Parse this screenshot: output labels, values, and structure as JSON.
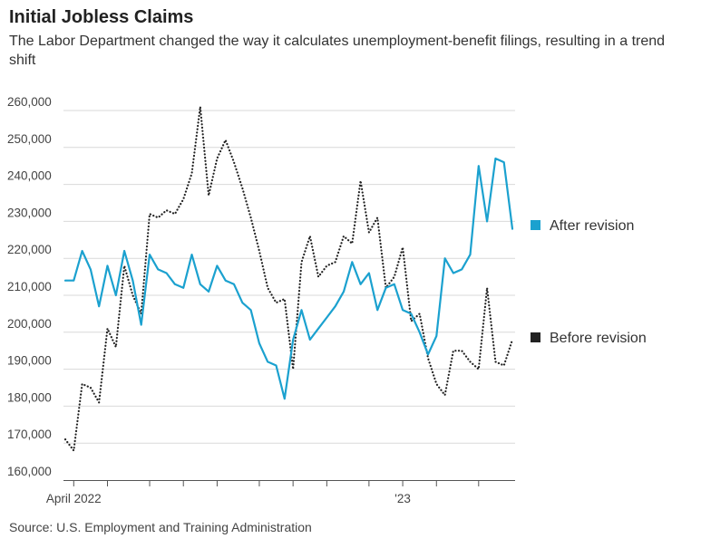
{
  "title": "Initial Jobless Claims",
  "subtitle": "The Labor Department changed the way it calculates unemployment-benefit filings, resulting in a trend shift",
  "source": "Source: U.S. Employment and Training Administration",
  "colors": {
    "after": "#1ba1cf",
    "before": "#222222",
    "grid": "#d9d9d9"
  },
  "chart_data": {
    "type": "line",
    "title": "Initial Jobless Claims",
    "ylim": [
      160000,
      260000
    ],
    "yticks": [
      {
        "value": 260000,
        "label": "260,000"
      },
      {
        "value": 250000,
        "label": "250,000"
      },
      {
        "value": 240000,
        "label": "240,000"
      },
      {
        "value": 230000,
        "label": "230,000"
      },
      {
        "value": 220000,
        "label": "220,000"
      },
      {
        "value": 210000,
        "label": "210,000"
      },
      {
        "value": 200000,
        "label": "200,000"
      },
      {
        "value": 190000,
        "label": "190,000"
      },
      {
        "value": 180000,
        "label": "180,000"
      },
      {
        "value": 170000,
        "label": "170,000"
      },
      {
        "value": 160000,
        "label": "160,000"
      }
    ],
    "x_range": [
      0,
      55
    ],
    "x_ticks": [
      {
        "x": 1,
        "label": "April 2022"
      },
      {
        "x": 5,
        "label": ""
      },
      {
        "x": 10,
        "label": ""
      },
      {
        "x": 14,
        "label": ""
      },
      {
        "x": 18,
        "label": ""
      },
      {
        "x": 23,
        "label": ""
      },
      {
        "x": 27,
        "label": ""
      },
      {
        "x": 31,
        "label": ""
      },
      {
        "x": 36,
        "label": ""
      },
      {
        "x": 40,
        "label": "'23"
      },
      {
        "x": 44,
        "label": ""
      },
      {
        "x": 49,
        "label": ""
      }
    ],
    "series": [
      {
        "name": "After revision",
        "style": "solid",
        "values": [
          214000,
          214000,
          222000,
          217000,
          207000,
          218000,
          210000,
          222000,
          214000,
          202000,
          221000,
          217000,
          216000,
          213000,
          212000,
          221000,
          213000,
          211000,
          218000,
          214000,
          213000,
          208000,
          206000,
          197000,
          192000,
          191000,
          182000,
          198000,
          206000,
          198000,
          201000,
          204000,
          207000,
          211000,
          219000,
          213000,
          216000,
          206000,
          212000,
          213000,
          206000,
          205000,
          200000,
          194000,
          199000,
          220000,
          216000,
          217000,
          221000,
          245000,
          230000,
          247000,
          246000,
          228000
        ]
      },
      {
        "name": "Before revision",
        "style": "dotted",
        "values": [
          171000,
          168000,
          186000,
          185000,
          181000,
          201000,
          196000,
          218000,
          210000,
          205000,
          232000,
          231000,
          233000,
          232000,
          236000,
          243000,
          261000,
          237000,
          247000,
          252000,
          246000,
          239000,
          231000,
          222000,
          212000,
          208000,
          209000,
          190000,
          219000,
          226000,
          215000,
          218000,
          219000,
          226000,
          224000,
          241000,
          227000,
          231000,
          212000,
          215000,
          223000,
          203000,
          205000,
          193000,
          186000,
          183000,
          195000,
          195000,
          192000,
          190000,
          212000,
          192000,
          191000,
          198000
        ]
      }
    ]
  },
  "legend": [
    {
      "label": "After revision"
    },
    {
      "label": "Before revision"
    }
  ]
}
